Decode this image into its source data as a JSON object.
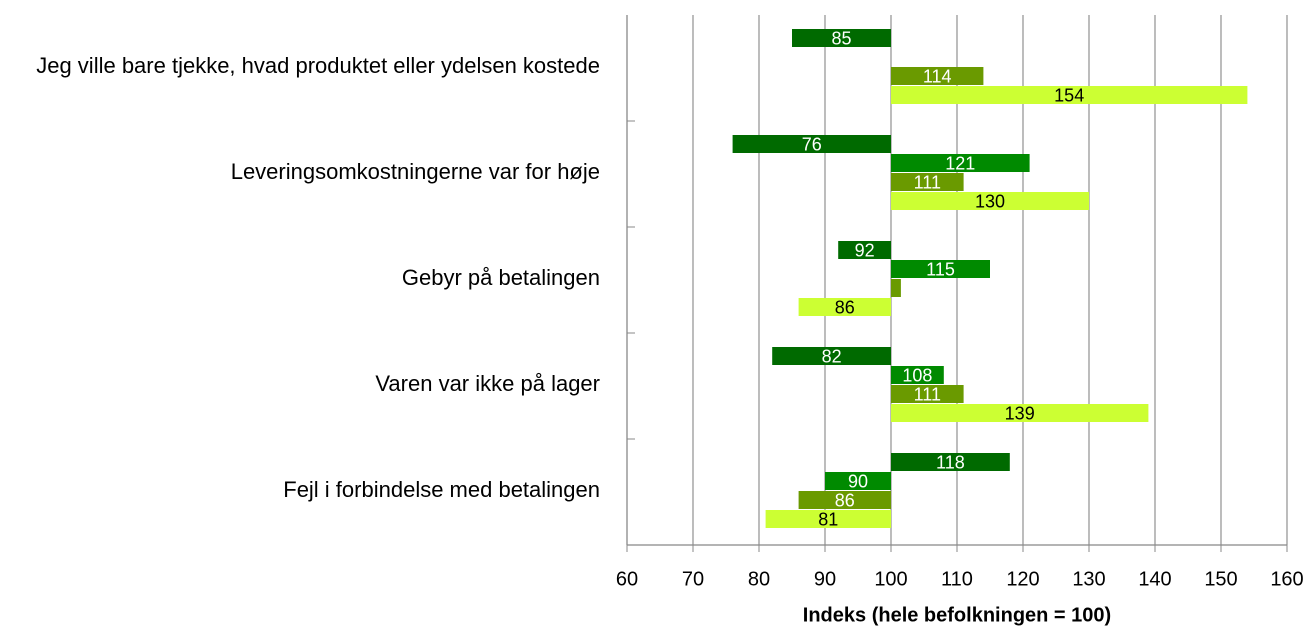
{
  "chart_data": {
    "type": "bar",
    "orientation": "horizontal",
    "baseline": 100,
    "xlabel": "Indeks (hele befolkningen = 100)",
    "categories": [
      "Jeg ville bare tjekke, hvad produktet eller ydelsen kostede",
      "Leveringsomkostningerne var for høje",
      "Gebyr på betalingen",
      "Varen var ikke på lager",
      "Fejl i forbindelse med betalingen"
    ],
    "series": [
      {
        "color": "#006a00",
        "label_color": "#ffffff",
        "values": [
          85,
          76,
          92,
          82,
          118
        ],
        "value_labels": [
          85,
          76,
          92,
          82,
          118
        ]
      },
      {
        "color": "#008a00",
        "label_color": "#ffffff",
        "values": [
          null,
          121,
          115,
          108,
          90
        ],
        "value_labels": [
          null,
          121,
          115,
          108,
          90
        ]
      },
      {
        "color": "#6a9a00",
        "label_color": "#ffffff",
        "values": [
          114,
          111,
          101.5,
          111,
          86
        ],
        "value_labels": [
          114,
          111,
          null,
          111,
          86
        ]
      },
      {
        "color": "#ccff33",
        "label_color": "#000000",
        "values": [
          154,
          130,
          86,
          139,
          81
        ],
        "value_labels": [
          154,
          130,
          86,
          139,
          81
        ]
      }
    ],
    "xlim": [
      60,
      160
    ],
    "xticks": [
      60,
      70,
      80,
      90,
      100,
      110,
      120,
      130,
      140,
      150,
      160
    ],
    "grid": true
  }
}
